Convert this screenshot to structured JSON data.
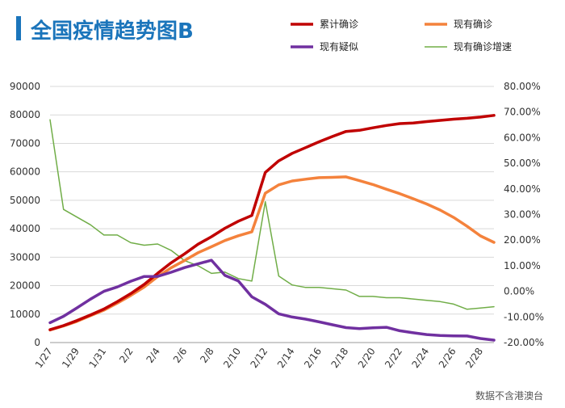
{
  "chart_data": {
    "type": "line",
    "title": "全国疫情趋势图B",
    "source_note": "数据不含港澳台",
    "x": [
      "1/27",
      "1/28",
      "1/29",
      "1/30",
      "1/31",
      "2/1",
      "2/2",
      "2/3",
      "2/4",
      "2/5",
      "2/6",
      "2/7",
      "2/8",
      "2/9",
      "2/10",
      "2/11",
      "2/12",
      "2/13",
      "2/14",
      "2/15",
      "2/16",
      "2/17",
      "2/18",
      "2/19",
      "2/20",
      "2/21",
      "2/22",
      "2/23",
      "2/24",
      "2/25",
      "2/26",
      "2/27",
      "2/28",
      "2/29"
    ],
    "x_tick_labels": [
      "1/27",
      "1/29",
      "1/31",
      "2/2",
      "2/4",
      "2/6",
      "2/8",
      "2/10",
      "2/12",
      "2/14",
      "2/16",
      "2/18",
      "2/20",
      "2/22",
      "2/24",
      "2/26",
      "2/28"
    ],
    "y_left": {
      "ticks": [
        0,
        10000,
        20000,
        30000,
        40000,
        50000,
        60000,
        70000,
        80000,
        90000
      ],
      "range": [
        0,
        90000
      ]
    },
    "y_right": {
      "ticks": [
        "-20.00%",
        "-10.00%",
        "0.00%",
        "10.00%",
        "20.00%",
        "30.00%",
        "40.00%",
        "50.00%",
        "60.00%",
        "70.00%",
        "80.00%"
      ],
      "range": [
        -0.2,
        0.8
      ]
    },
    "grid": true,
    "legend_position": "top-right",
    "series": [
      {
        "name": "累计确诊",
        "axis": "left",
        "color": "#c00000",
        "values": [
          4515,
          5974,
          7711,
          9692,
          11791,
          14380,
          17205,
          20438,
          24324,
          28018,
          31161,
          34546,
          37198,
          40171,
          42638,
          44653,
          59804,
          63851,
          66492,
          68500,
          70548,
          72436,
          74185,
          74576,
          75465,
          76288,
          76936,
          77150,
          77658,
          78064,
          78497,
          78824,
          79251,
          79824
        ]
      },
      {
        "name": "现有确诊",
        "axis": "left",
        "color": "#f4823c",
        "values": [
          4409,
          5806,
          7451,
          9426,
          11374,
          13846,
          16543,
          19514,
          23175,
          26293,
          28859,
          31577,
          33664,
          35862,
          37539,
          38917,
          52493,
          55429,
          56771,
          57421,
          57934,
          58062,
          58223,
          56888,
          55524,
          53896,
          52339,
          50546,
          48690,
          46568,
          43987,
          40846,
          37474,
          35205
        ]
      },
      {
        "name": "现有疑似",
        "axis": "left",
        "color": "#7030a0",
        "values": [
          6973,
          9239,
          12167,
          15238,
          17988,
          19544,
          21558,
          23214,
          23260,
          24702,
          26359,
          27657,
          28942,
          23589,
          21675,
          16067,
          13435,
          10109,
          8969,
          8228,
          7264,
          6242,
          5248,
          4922,
          5206,
          5365,
          4148,
          3434,
          2824,
          2491,
          2358,
          2308,
          1418,
          851
        ]
      },
      {
        "name": "现有确诊增速",
        "axis": "right",
        "color": "#70ad47",
        "values": [
          0.67,
          0.32,
          0.29,
          0.26,
          0.22,
          0.22,
          0.19,
          0.18,
          0.185,
          0.16,
          0.12,
          0.1,
          0.07,
          0.075,
          0.05,
          0.04,
          0.35,
          0.06,
          0.025,
          0.015,
          0.015,
          0.01,
          0.005,
          -0.02,
          -0.02,
          -0.025,
          -0.025,
          -0.03,
          -0.035,
          -0.04,
          -0.05,
          -0.07,
          -0.065,
          -0.06
        ]
      }
    ]
  }
}
